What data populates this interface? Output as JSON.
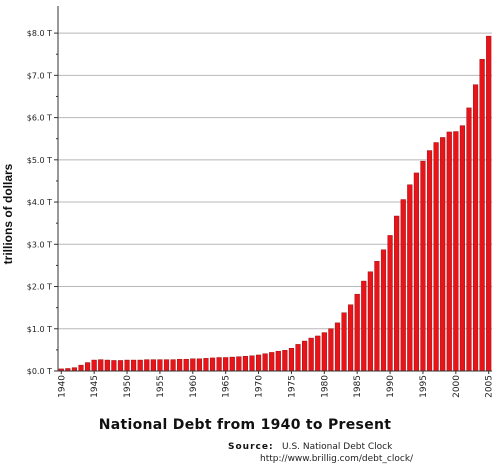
{
  "chart_data": {
    "type": "bar",
    "title": "National Debt from 1940 to Present",
    "ylabel": "trillions of dollars",
    "xlabel": "",
    "ylim": [
      0,
      8.5
    ],
    "yticks": [
      0,
      1,
      2,
      3,
      4,
      5,
      6,
      7,
      8
    ],
    "ytick_labels": [
      "$0.0 T",
      "$1.0 T",
      "$2.0 T",
      "$3.0 T",
      "$4.0 T",
      "$5.0 T",
      "$6.0 T",
      "$7.0 T",
      "$8.0 T"
    ],
    "xtick_labels": [
      "1940",
      "1945",
      "1950",
      "1955",
      "1960",
      "1965",
      "1970",
      "1975",
      "1980",
      "1985",
      "1990",
      "1995",
      "2000",
      "2005"
    ],
    "grid": true,
    "bar_color": "#e8141a",
    "categories": [
      "1940",
      "1941",
      "1942",
      "1943",
      "1944",
      "1945",
      "1946",
      "1947",
      "1948",
      "1949",
      "1950",
      "1951",
      "1952",
      "1953",
      "1954",
      "1955",
      "1956",
      "1957",
      "1958",
      "1959",
      "1960",
      "1961",
      "1962",
      "1963",
      "1964",
      "1965",
      "1966",
      "1967",
      "1968",
      "1969",
      "1970",
      "1971",
      "1972",
      "1973",
      "1974",
      "1975",
      "1976",
      "1977",
      "1978",
      "1979",
      "1980",
      "1981",
      "1982",
      "1983",
      "1984",
      "1985",
      "1986",
      "1987",
      "1988",
      "1989",
      "1990",
      "1991",
      "1992",
      "1993",
      "1994",
      "1995",
      "1996",
      "1997",
      "1998",
      "1999",
      "2000",
      "2001",
      "2002",
      "2003",
      "2004",
      "2005"
    ],
    "values": [
      0.05,
      0.06,
      0.08,
      0.14,
      0.2,
      0.26,
      0.27,
      0.26,
      0.25,
      0.25,
      0.26,
      0.26,
      0.26,
      0.27,
      0.27,
      0.27,
      0.27,
      0.27,
      0.28,
      0.28,
      0.29,
      0.29,
      0.3,
      0.31,
      0.32,
      0.32,
      0.33,
      0.34,
      0.35,
      0.36,
      0.38,
      0.41,
      0.44,
      0.47,
      0.49,
      0.54,
      0.63,
      0.71,
      0.78,
      0.83,
      0.91,
      1.0,
      1.14,
      1.38,
      1.57,
      1.82,
      2.13,
      2.35,
      2.6,
      2.87,
      3.21,
      3.67,
      4.06,
      4.41,
      4.69,
      4.97,
      5.22,
      5.41,
      5.53,
      5.66,
      5.67,
      5.81,
      6.23,
      6.78,
      7.38,
      7.93
    ]
  },
  "source": {
    "label": "Source:",
    "name": "U.S. National Debt Clock",
    "url": "http://www.brillig.com/debt_clock/"
  }
}
